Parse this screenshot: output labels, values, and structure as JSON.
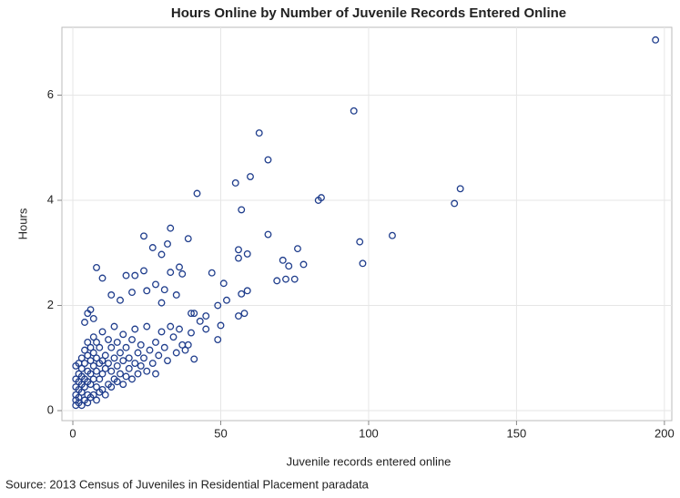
{
  "chart_data": {
    "type": "scatter",
    "title": "Hours Online by Number of Juvenile Records Entered Online",
    "x_label": "Juvenile records entered online",
    "y_label": "Hours",
    "source": "Source: 2013 Census of Juveniles in Residential Placement paradata",
    "color": "#1f3d8c",
    "grid": true,
    "xlim": [
      -3.7,
      202.5
    ],
    "ylim": [
      -0.19,
      7.29
    ],
    "xticks": [
      0,
      50,
      100,
      150,
      200
    ],
    "yticks": [
      0,
      2,
      4,
      6
    ],
    "x": [
      197,
      95,
      63,
      66,
      60,
      55,
      42,
      84,
      83,
      131,
      129,
      57,
      33,
      24,
      66,
      108,
      32,
      97,
      76,
      56,
      27,
      39,
      56,
      30,
      59,
      71,
      73,
      78,
      98,
      36,
      8,
      21,
      24,
      33,
      37,
      47,
      51,
      10,
      18,
      69,
      72,
      75,
      59,
      57,
      28,
      31,
      25,
      20,
      13,
      16,
      30,
      35,
      49,
      52,
      58,
      56,
      6,
      5,
      7,
      4,
      45,
      41,
      50,
      49,
      40,
      39,
      41,
      1,
      1,
      1,
      1,
      1,
      1,
      2,
      2,
      2,
      2,
      2,
      2,
      3,
      3,
      3,
      3,
      3,
      3,
      4,
      4,
      4,
      4,
      4,
      5,
      5,
      5,
      5,
      5,
      5,
      6,
      6,
      6,
      6,
      6,
      7,
      7,
      7,
      7,
      7,
      8,
      8,
      8,
      8,
      8,
      9,
      9,
      9,
      9,
      10,
      10,
      10,
      10,
      11,
      11,
      11,
      12,
      12,
      12,
      13,
      13,
      13,
      14,
      14,
      14,
      15,
      15,
      15,
      16,
      16,
      17,
      17,
      17,
      18,
      18,
      19,
      19,
      20,
      20,
      21,
      21,
      22,
      22,
      23,
      23,
      24,
      25,
      25,
      26,
      27,
      28,
      28,
      29,
      30,
      31,
      32,
      33,
      34,
      35,
      36,
      37,
      38,
      40,
      43,
      45
    ],
    "values": [
      7.05,
      5.7,
      5.28,
      4.77,
      4.45,
      4.33,
      4.13,
      4.05,
      4.0,
      4.22,
      3.94,
      3.82,
      3.47,
      3.32,
      3.35,
      3.33,
      3.17,
      3.21,
      3.08,
      3.06,
      3.1,
      3.27,
      2.9,
      2.97,
      2.98,
      2.86,
      2.75,
      2.78,
      2.8,
      2.73,
      2.72,
      2.57,
      2.66,
      2.63,
      2.6,
      2.62,
      2.42,
      2.52,
      2.57,
      2.47,
      2.5,
      2.5,
      2.28,
      2.22,
      2.4,
      2.3,
      2.28,
      2.25,
      2.2,
      2.1,
      2.05,
      2.2,
      2.0,
      2.1,
      1.85,
      1.8,
      1.92,
      1.85,
      1.75,
      1.68,
      1.8,
      1.85,
      1.62,
      1.35,
      1.48,
      1.25,
      0.98,
      0.1,
      0.2,
      0.3,
      0.45,
      0.6,
      0.85,
      0.15,
      0.25,
      0.4,
      0.55,
      0.7,
      0.9,
      0.1,
      0.35,
      0.5,
      0.65,
      0.8,
      1.0,
      0.2,
      0.45,
      0.6,
      0.9,
      1.15,
      0.15,
      0.3,
      0.55,
      0.75,
      1.05,
      1.3,
      0.25,
      0.5,
      0.7,
      0.95,
      1.2,
      0.3,
      0.6,
      0.85,
      1.1,
      1.4,
      0.2,
      0.45,
      0.75,
      1.0,
      1.3,
      0.35,
      0.6,
      0.9,
      1.2,
      0.4,
      0.7,
      0.95,
      1.5,
      0.3,
      0.8,
      1.05,
      0.5,
      0.9,
      1.35,
      0.45,
      0.75,
      1.2,
      0.6,
      1.0,
      1.6,
      0.55,
      0.85,
      1.3,
      0.7,
      1.1,
      0.5,
      0.95,
      1.45,
      0.65,
      1.2,
      0.8,
      1.0,
      0.6,
      1.35,
      0.9,
      1.55,
      0.7,
      1.1,
      1.25,
      0.85,
      1.0,
      0.75,
      1.6,
      1.15,
      0.9,
      1.3,
      0.7,
      1.05,
      1.5,
      1.2,
      0.95,
      1.6,
      1.4,
      1.1,
      1.55,
      1.25,
      1.15,
      1.85,
      1.7,
      1.55
    ]
  }
}
